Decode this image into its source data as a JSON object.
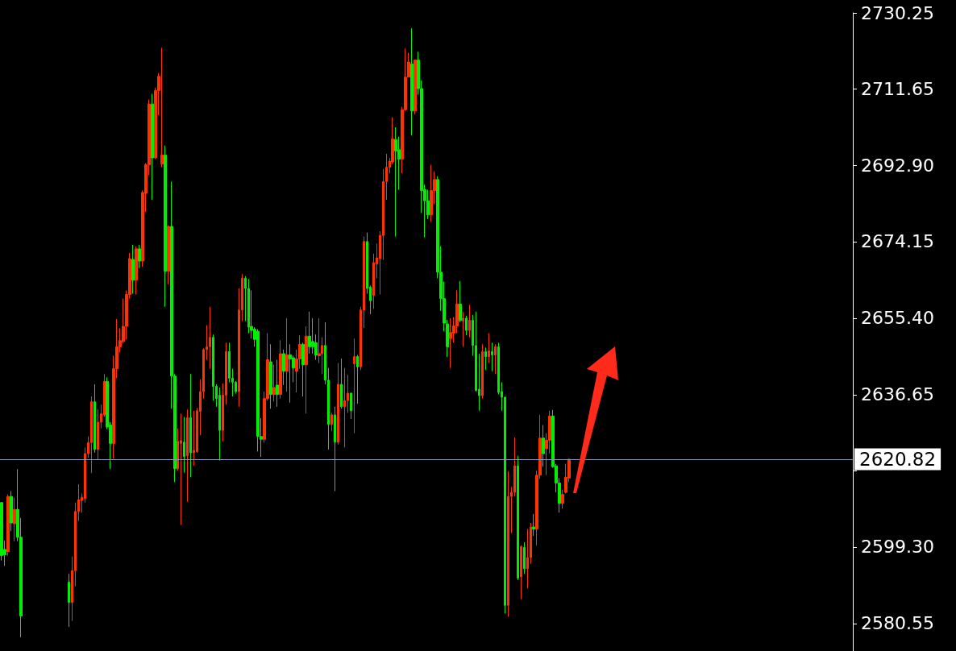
{
  "chart_data": {
    "type": "candlestick",
    "categories": [
      null,
      null,
      null,
      null,
      null,
      null,
      null,
      null,
      null,
      null,
      null,
      null,
      null,
      null,
      null,
      null,
      null,
      null,
      null,
      null,
      null,
      null,
      null,
      null,
      null,
      null,
      null,
      null,
      null,
      null,
      null,
      null,
      null,
      null,
      null,
      null,
      null,
      null,
      null,
      null,
      null,
      null,
      null,
      null,
      null,
      null,
      null,
      null,
      null,
      null,
      null,
      null,
      null,
      null,
      null,
      null,
      null,
      null,
      null,
      null,
      null,
      null,
      null,
      null,
      null,
      null,
      null,
      null,
      null,
      null,
      null,
      null,
      null,
      null,
      null,
      null,
      null,
      null,
      null,
      null,
      null,
      null,
      null,
      null,
      null,
      null,
      null,
      null,
      null,
      null,
      null,
      null,
      null,
      null,
      null,
      null,
      null,
      null,
      null,
      null,
      null,
      null,
      null,
      null,
      null,
      null,
      null,
      null,
      null,
      null,
      null,
      null,
      null,
      null,
      null,
      null,
      null,
      null,
      null,
      null,
      null,
      null,
      null,
      null,
      null,
      null,
      null,
      null,
      null,
      null,
      null,
      null,
      null,
      null,
      null,
      null,
      null,
      null,
      null,
      null,
      null,
      null,
      null,
      null,
      null,
      null,
      null,
      null,
      null,
      null,
      null,
      null,
      null,
      null,
      null,
      null,
      null,
      null,
      null,
      null,
      null,
      null,
      null,
      null,
      null,
      null,
      null,
      null,
      null,
      null,
      null,
      null,
      null,
      null,
      null,
      null,
      null,
      null,
      null,
      null,
      null,
      null,
      null,
      null,
      null,
      null,
      null,
      null,
      null,
      null,
      null,
      null,
      null,
      null,
      null,
      null,
      null,
      null,
      null,
      null,
      null,
      null,
      null,
      null,
      null,
      null,
      null,
      null,
      null,
      null,
      null,
      null,
      null,
      null,
      null,
      null,
      null,
      null,
      null,
      null,
      null,
      null,
      null,
      null,
      null,
      null,
      null,
      null,
      null,
      null,
      null,
      null,
      null,
      null,
      null,
      null,
      null,
      null,
      null,
      null,
      null,
      null,
      null,
      null,
      null,
      null,
      null,
      null,
      null,
      null,
      null,
      null,
      null,
      null,
      null,
      null,
      null,
      null,
      null,
      null,
      null,
      null,
      null,
      null,
      null,
      null
    ],
    "ohlc": [
      [
        2610.2,
        2610.2,
        2596.0,
        2597.2
      ],
      [
        2598.7,
        2600.9,
        2594.7,
        2597.4
      ],
      [
        2598.2,
        2612.2,
        2597.2,
        2611.7
      ],
      [
        2611.7,
        2613.0,
        2603.2,
        2605.2
      ],
      [
        2605.0,
        2611.4,
        2600.7,
        2608.5
      ],
      [
        2608.5,
        2618.4,
        2600.7,
        2601.7
      ],
      [
        2601.7,
        2606.4,
        2577.2,
        2582.4
      ],
      null,
      null,
      null,
      null,
      null,
      null,
      null,
      null,
      null,
      null,
      null,
      null,
      null,
      null,
      [
        2590.7,
        2592.7,
        2579.7,
        2585.7
      ],
      [
        2585.7,
        2596.9,
        2581.2,
        2593.5
      ],
      [
        2593.5,
        2610.2,
        2589.7,
        2608.0
      ],
      [
        2608.0,
        2614.7,
        2605.7,
        2610.9
      ],
      [
        2610.7,
        2612.4,
        2607.7,
        2611.5
      ],
      [
        2611.2,
        2623.7,
        2610.2,
        2622.2
      ],
      [
        2622.2,
        2626.4,
        2621.2,
        2624.9
      ],
      [
        2624.9,
        2636.2,
        2617.4,
        2634.9
      ],
      [
        2634.9,
        2639.2,
        2622.4,
        2623.2
      ],
      [
        2623.2,
        2633.0,
        2620.7,
        2629.9
      ],
      [
        2629.9,
        2634.2,
        2628.4,
        2632.0
      ],
      [
        2631.7,
        2641.7,
        2631.2,
        2639.9
      ],
      [
        2639.9,
        2640.9,
        2628.2,
        2628.7
      ],
      [
        2629.2,
        2629.9,
        2618.4,
        2624.7
      ],
      [
        2624.7,
        2646.2,
        2621.0,
        2643.0
      ],
      [
        2643.0,
        2655.2,
        2640.7,
        2648.4
      ],
      [
        2648.4,
        2653.0,
        2647.0,
        2649.9
      ],
      [
        2649.7,
        2660.2,
        2649.2,
        2653.4
      ],
      [
        2653.4,
        2662.2,
        2650.2,
        2661.2
      ],
      [
        2661.2,
        2671.4,
        2660.2,
        2670.0
      ],
      [
        2669.8,
        2673.4,
        2661.4,
        2664.7
      ],
      [
        2664.7,
        2673.0,
        2661.2,
        2672.4
      ],
      [
        2672.4,
        2673.4,
        2667.7,
        2669.4
      ],
      [
        2669.4,
        2686.7,
        2668.0,
        2686.2
      ],
      [
        2686.0,
        2693.4,
        2681.4,
        2693.0
      ],
      [
        2693.0,
        2709.0,
        2690.5,
        2707.9
      ],
      [
        2707.9,
        2710.4,
        2684.4,
        2694.7
      ],
      [
        2694.7,
        2711.9,
        2694.4,
        2711.2
      ],
      [
        2711.2,
        2715.5,
        2705.2,
        2714.7
      ],
      [
        2693.2,
        2721.7,
        2692.4,
        2695.4
      ],
      [
        2695.4,
        2697.7,
        2658.2,
        2666.9
      ],
      [
        2666.9,
        2678.2,
        2663.7,
        2677.9
      ],
      [
        2677.9,
        2688.9,
        2633.2,
        2641.2
      ],
      [
        2641.2,
        2641.7,
        2615.2,
        2618.5
      ],
      [
        2618.5,
        2628.4,
        2618.0,
        2625.2
      ],
      [
        2624.7,
        2632.0,
        2604.7,
        2625.4
      ],
      [
        2625.0,
        2631.2,
        2617.5,
        2621.5
      ],
      [
        2621.7,
        2633.0,
        2610.4,
        2631.0
      ],
      [
        2631.0,
        2641.7,
        2616.4,
        2622.4
      ],
      [
        2622.4,
        2632.7,
        2619.2,
        2623.0
      ],
      [
        2622.7,
        2633.4,
        2622.4,
        2632.7
      ],
      [
        2632.5,
        2640.4,
        2626.7,
        2637.4
      ],
      [
        2637.4,
        2648.0,
        2635.7,
        2647.7
      ],
      [
        2647.7,
        2653.7,
        2645.2,
        2648.4
      ],
      [
        2648.4,
        2658.2,
        2643.0,
        2650.7
      ],
      [
        2650.7,
        2651.4,
        2635.2,
        2638.7
      ],
      [
        2638.7,
        2639.2,
        2633.7,
        2635.7
      ],
      [
        2636.5,
        2638.4,
        2620.5,
        2627.9
      ],
      [
        2627.9,
        2639.4,
        2625.2,
        2636.5
      ],
      [
        2636.5,
        2649.4,
        2634.2,
        2647.2
      ],
      [
        2647.2,
        2649.4,
        2639.7,
        2640.7
      ],
      [
        2640.7,
        2643.0,
        2636.2,
        2639.7
      ],
      [
        2639.7,
        2640.0,
        2636.9,
        2637.4
      ],
      [
        2637.4,
        2662.7,
        2633.7,
        2657.4
      ],
      [
        2657.4,
        2666.2,
        2654.7,
        2665.2
      ],
      [
        2665.2,
        2665.7,
        2654.7,
        2662.7
      ],
      [
        2662.7,
        2665.0,
        2651.7,
        2653.2
      ],
      [
        2653.4,
        2662.2,
        2650.4,
        2652.4
      ],
      [
        2652.7,
        2653.2,
        2648.4,
        2650.2
      ],
      [
        2652.2,
        2652.7,
        2622.7,
        2626.4
      ],
      [
        2626.4,
        2630.9,
        2621.4,
        2625.7
      ],
      [
        2625.7,
        2637.4,
        2624.9,
        2635.7
      ],
      [
        2635.7,
        2651.7,
        2635.2,
        2645.2
      ],
      [
        2644.7,
        2649.0,
        2633.2,
        2636.7
      ],
      [
        2636.7,
        2644.0,
        2635.0,
        2638.4
      ],
      [
        2639.0,
        2645.2,
        2633.7,
        2636.7
      ],
      [
        2636.7,
        2650.0,
        2635.7,
        2646.7
      ],
      [
        2646.7,
        2647.7,
        2639.0,
        2642.4
      ],
      [
        2642.4,
        2655.4,
        2637.4,
        2646.4
      ],
      [
        2646.4,
        2649.0,
        2634.7,
        2645.4
      ],
      [
        2645.7,
        2646.2,
        2639.7,
        2643.2
      ],
      [
        2642.4,
        2647.7,
        2637.2,
        2645.4
      ],
      [
        2645.4,
        2651.2,
        2643.0,
        2649.0
      ],
      [
        2649.0,
        2649.4,
        2636.2,
        2644.0
      ],
      [
        2644.0,
        2653.4,
        2632.0,
        2651.0
      ],
      [
        2651.0,
        2657.0,
        2646.7,
        2648.4
      ],
      [
        2649.7,
        2655.4,
        2646.7,
        2648.4
      ],
      [
        2649.4,
        2651.4,
        2645.2,
        2646.4
      ],
      [
        2646.2,
        2655.4,
        2644.4,
        2646.7
      ],
      [
        2646.7,
        2650.7,
        2641.7,
        2648.7
      ],
      [
        2648.7,
        2654.4,
        2639.2,
        2640.2
      ],
      [
        2640.2,
        2643.2,
        2623.2,
        2629.4
      ],
      [
        2629.4,
        2632.2,
        2627.7,
        2631.7
      ],
      [
        2631.7,
        2633.7,
        2613.0,
        2625.0
      ],
      [
        2625.0,
        2644.4,
        2624.4,
        2639.2
      ],
      [
        2639.2,
        2645.5,
        2633.2,
        2633.7
      ],
      [
        2633.7,
        2643.2,
        2623.7,
        2635.2
      ],
      [
        2635.2,
        2641.5,
        2632.2,
        2637.0
      ],
      [
        2637.0,
        2637.2,
        2630.7,
        2632.7
      ],
      [
        2644.2,
        2650.4,
        2627.2,
        2646.0
      ],
      [
        2646.0,
        2646.4,
        2634.4,
        2643.5
      ],
      [
        2643.5,
        2658.2,
        2642.7,
        2657.4
      ],
      [
        2657.4,
        2675.4,
        2653.0,
        2674.2
      ],
      [
        2674.2,
        2676.4,
        2661.4,
        2662.7
      ],
      [
        2663.0,
        2663.4,
        2656.4,
        2659.7
      ],
      [
        2661.0,
        2671.2,
        2657.7,
        2669.0
      ],
      [
        2668.7,
        2673.7,
        2665.2,
        2670.2
      ],
      [
        2670.0,
        2676.7,
        2661.2,
        2675.7
      ],
      [
        2675.7,
        2692.0,
        2669.7,
        2688.9
      ],
      [
        2688.9,
        2695.7,
        2684.4,
        2692.4
      ],
      [
        2692.4,
        2694.7,
        2690.9,
        2693.9
      ],
      [
        2693.7,
        2704.7,
        2693.2,
        2699.4
      ],
      [
        2699.2,
        2702.2,
        2675.4,
        2696.4
      ],
      [
        2696.7,
        2699.9,
        2686.9,
        2694.4
      ],
      [
        2694.4,
        2707.2,
        2690.9,
        2706.5
      ],
      [
        2706.5,
        2721.5,
        2706.2,
        2714.5
      ],
      [
        2714.5,
        2720.5,
        2714.5,
        2718.2
      ],
      [
        2717.7,
        2726.5,
        2700.2,
        2706.2
      ],
      [
        2706.2,
        2718.7,
        2705.4,
        2718.7
      ],
      [
        2718.7,
        2720.7,
        2710.2,
        2711.7
      ],
      [
        2711.7,
        2713.7,
        2681.2,
        2686.7
      ],
      [
        2686.9,
        2688.2,
        2675.2,
        2684.2
      ],
      [
        2684.2,
        2686.9,
        2679.7,
        2680.7
      ],
      [
        2680.7,
        2693.0,
        2679.0,
        2686.7
      ],
      [
        2686.7,
        2691.4,
        2683.4,
        2689.4
      ],
      [
        2689.4,
        2690.2,
        2665.2,
        2666.7
      ],
      [
        2666.7,
        2673.0,
        2657.2,
        2660.2
      ],
      [
        2660.2,
        2664.4,
        2652.2,
        2654.2
      ],
      [
        2654.0,
        2655.0,
        2645.9,
        2648.4
      ],
      [
        2650.4,
        2655.4,
        2643.2,
        2651.9
      ],
      [
        2651.7,
        2655.7,
        2649.4,
        2653.5
      ],
      [
        2653.5,
        2662.2,
        2651.7,
        2658.9
      ],
      [
        2658.9,
        2664.5,
        2654.4,
        2654.9
      ],
      [
        2654.7,
        2656.9,
        2648.4,
        2655.4
      ],
      [
        2655.4,
        2656.0,
        2651.2,
        2652.4
      ],
      [
        2652.4,
        2658.7,
        2650.7,
        2654.9
      ],
      [
        2654.9,
        2656.2,
        2646.2,
        2648.7
      ],
      [
        2648.7,
        2657.0,
        2637.4,
        2637.7
      ],
      [
        2638.0,
        2646.7,
        2632.7,
        2636.4
      ],
      [
        2636.4,
        2649.0,
        2635.7,
        2647.2
      ],
      [
        2647.2,
        2648.2,
        2642.7,
        2646.0
      ],
      [
        2646.0,
        2651.7,
        2644.4,
        2647.4
      ],
      [
        2647.2,
        2649.4,
        2642.4,
        2646.4
      ],
      [
        2646.4,
        2649.0,
        2641.7,
        2648.4
      ],
      [
        2648.4,
        2649.4,
        2636.7,
        2637.2
      ],
      [
        2637.4,
        2639.7,
        2632.7,
        2636.0
      ],
      [
        2636.0,
        2636.2,
        2583.0,
        2585.0
      ],
      [
        2585.0,
        2617.9,
        2582.2,
        2611.7
      ],
      [
        2611.7,
        2614.0,
        2602.7,
        2612.7
      ],
      [
        2612.7,
        2626.2,
        2611.7,
        2619.2
      ],
      [
        2619.2,
        2621.7,
        2591.2,
        2591.7
      ],
      [
        2592.0,
        2599.7,
        2586.5,
        2599.4
      ],
      [
        2599.2,
        2600.5,
        2592.7,
        2594.0
      ],
      [
        2594.0,
        2603.7,
        2589.2,
        2596.7
      ],
      [
        2596.7,
        2605.2,
        2595.2,
        2604.2
      ],
      [
        2604.2,
        2607.4,
        2602.0,
        2603.7
      ],
      [
        2603.7,
        2618.0,
        2599.7,
        2616.9
      ],
      [
        2616.9,
        2631.7,
        2616.0,
        2626.0
      ],
      [
        2626.0,
        2629.2,
        2619.0,
        2622.2
      ],
      [
        2623.4,
        2627.2,
        2616.9,
        2625.5
      ],
      [
        2625.5,
        2632.7,
        2622.2,
        2631.4
      ],
      [
        2631.4,
        2632.9,
        2618.7,
        2619.0
      ],
      [
        2619.2,
        2619.7,
        2612.7,
        2615.0
      ],
      [
        2615.0,
        2616.2,
        2607.7,
        2610.0
      ],
      [
        2610.0,
        2613.4,
        2608.7,
        2612.2
      ],
      [
        2612.7,
        2619.7,
        2612.4,
        2616.4
      ],
      [
        2616.2,
        2621.0,
        2615.2,
        2620.8
      ],
      null,
      null,
      null,
      null,
      null,
      null,
      null,
      null,
      null,
      null,
      null,
      null,
      null,
      null,
      null,
      null,
      null,
      null,
      null,
      null,
      null,
      null,
      null,
      null,
      null,
      null,
      null,
      null,
      null,
      null,
      null,
      null,
      null,
      null,
      null,
      null,
      null,
      null,
      null,
      null,
      null,
      null,
      null,
      null,
      null,
      null,
      null,
      null,
      null,
      null,
      null,
      null,
      null,
      null,
      null,
      null,
      null,
      null,
      null,
      null,
      null,
      null,
      null,
      null,
      null,
      null,
      null,
      null,
      null,
      null,
      null,
      null,
      null,
      null,
      null,
      null,
      null,
      null,
      null,
      null,
      null,
      null,
      null,
      null,
      null,
      null,
      null,
      null
    ],
    "colors": [
      "#00ee00",
      "#00ee00",
      "#ff3300",
      "#00ee00",
      "#ff3300",
      "#00ee00",
      "#00ee00",
      null,
      null,
      null,
      null,
      null,
      null,
      null,
      null,
      null,
      null,
      null,
      null,
      null,
      null,
      "#00ee00",
      "#ff3300",
      "#ff3300",
      "#ff3300",
      "#ff3300",
      "#ff3300",
      "#ff3300",
      "#ff3300",
      "#00ee00",
      "#ff3300",
      "#ff3300",
      "#ff3300",
      "#00ee00",
      "#00ee00",
      "#ff3300",
      "#ff3300",
      "#ff3300",
      "#ff3300",
      "#ff3300",
      "#ff3300",
      "#00ee00",
      "#ff3300",
      "#00ee00",
      "#ff3300",
      "#ff3300",
      "#ff3300",
      "#00ee00",
      "#ff3300",
      "#ff3300",
      "#ff3300",
      "#00ee00",
      "#ff3300",
      "#00ee00",
      "#00ee00",
      "#ff3300",
      "#ff3300",
      "#00ee00",
      "#ff3300",
      "#00ee00",
      "#ff3300",
      "#ff3300",
      "#ff3300",
      "#ff3300",
      "#ff3300",
      "#ff3300",
      "#00ee00",
      "#00ee00",
      "#00ee00",
      "#ff3300",
      "#ff3300",
      "#00ee00",
      "#00ee00",
      "#00ee00",
      "#ff3300",
      "#ff3300",
      "#00ee00",
      "#00ee00",
      "#00ee00",
      "#00ee00",
      "#00ee00",
      "#00ee00",
      "#ff3300",
      "#ff3300",
      "#00ee00",
      "#ff3300",
      "#00ee00",
      "#ff3300",
      "#00ee00",
      "#ff3300",
      "#00ee00",
      "#00ee00",
      "#ff3300",
      "#ff3300",
      "#00ee00",
      "#ff3300",
      "#00ee00",
      "#00ee00",
      "#00ee00",
      "#ff3300",
      "#ff3300",
      "#00ee00",
      "#00ee00",
      "#ff3300",
      "#00ee00",
      "#ff3300",
      "#00ee00",
      "#ff3300",
      "#ff3300",
      "#00ee00",
      "#ff3300",
      "#00ee00",
      "#ff3300",
      "#ff3300",
      "#00ee00",
      "#00ee00",
      "#ff3300",
      "#ff3300",
      "#ff3300",
      "#ff3300",
      "#ff3300",
      "#ff3300",
      "#ff3300",
      "#00ee00",
      "#00ee00",
      "#ff3300",
      "#ff3300",
      "#ff3300",
      "#00ee00",
      "#ff3300",
      "#00ee00",
      "#00ee00",
      "#00ee00",
      "#00ee00",
      "#ff3300",
      "#ff3300",
      "#00ee00",
      "#00ee00",
      "#00ee00",
      "#00ee00",
      "#ff3300",
      "#ff3300",
      "#ff3300",
      "#00ee00",
      "#ff3300",
      "#00ee00",
      "#ff3300",
      "#00ee00",
      "#00ee00",
      "#00ee00",
      "#ff3300",
      "#00ee00",
      "#ff3300",
      "#00ee00",
      "#ff3300",
      "#00ee00",
      "#00ee00",
      "#00ee00",
      "#ff3300",
      "#ff3300",
      "#ff3300",
      "#00ee00",
      "#ff3300",
      "#00ee00",
      "#ff3300",
      "#ff3300",
      "#00ee00",
      "#ff3300",
      "#ff3300",
      "#00ee00",
      "#ff3300",
      "#ff3300",
      "#00ee00",
      "#00ee00",
      "#00ee00",
      "#ff3300",
      "#ff3300",
      "#ff3300",
      null,
      null,
      null,
      null,
      null,
      null,
      null,
      null,
      null,
      null,
      null,
      null,
      null,
      null,
      null,
      null,
      null,
      null,
      null,
      null,
      null,
      null,
      null,
      null,
      null,
      null,
      null,
      null,
      null,
      null,
      null,
      null,
      null,
      null,
      null,
      null,
      null,
      null,
      null,
      null,
      null,
      null,
      null,
      null,
      null,
      null,
      null,
      null,
      null,
      null,
      null,
      null,
      null,
      null,
      null,
      null,
      null,
      null,
      null,
      null,
      null,
      null,
      null,
      null,
      null,
      null,
      null,
      null,
      null,
      null,
      null,
      null,
      null,
      null,
      null,
      null,
      null,
      null,
      null,
      null,
      null,
      null,
      null,
      null,
      null,
      null,
      null,
      null
    ],
    "ylim": [
      2573.8,
      2730.25
    ],
    "yticks": [
      2730.25,
      2711.65,
      {
        "value": 2692.9,
        "label": "2692.90"
      },
      2674.15,
      {
        "value": 2655.4,
        "label": "2655.40"
      },
      2636.65,
      {
        "value": 2618.05,
        "label": null
      },
      {
        "value": 2599.3,
        "label": "2599.30"
      },
      2580.55
    ],
    "tick_labels": "y",
    "ref_lines": [
      {
        "axis": "y",
        "value": 2620.82,
        "label": "2620.82",
        "color": "#8a96b4"
      }
    ]
  }
}
